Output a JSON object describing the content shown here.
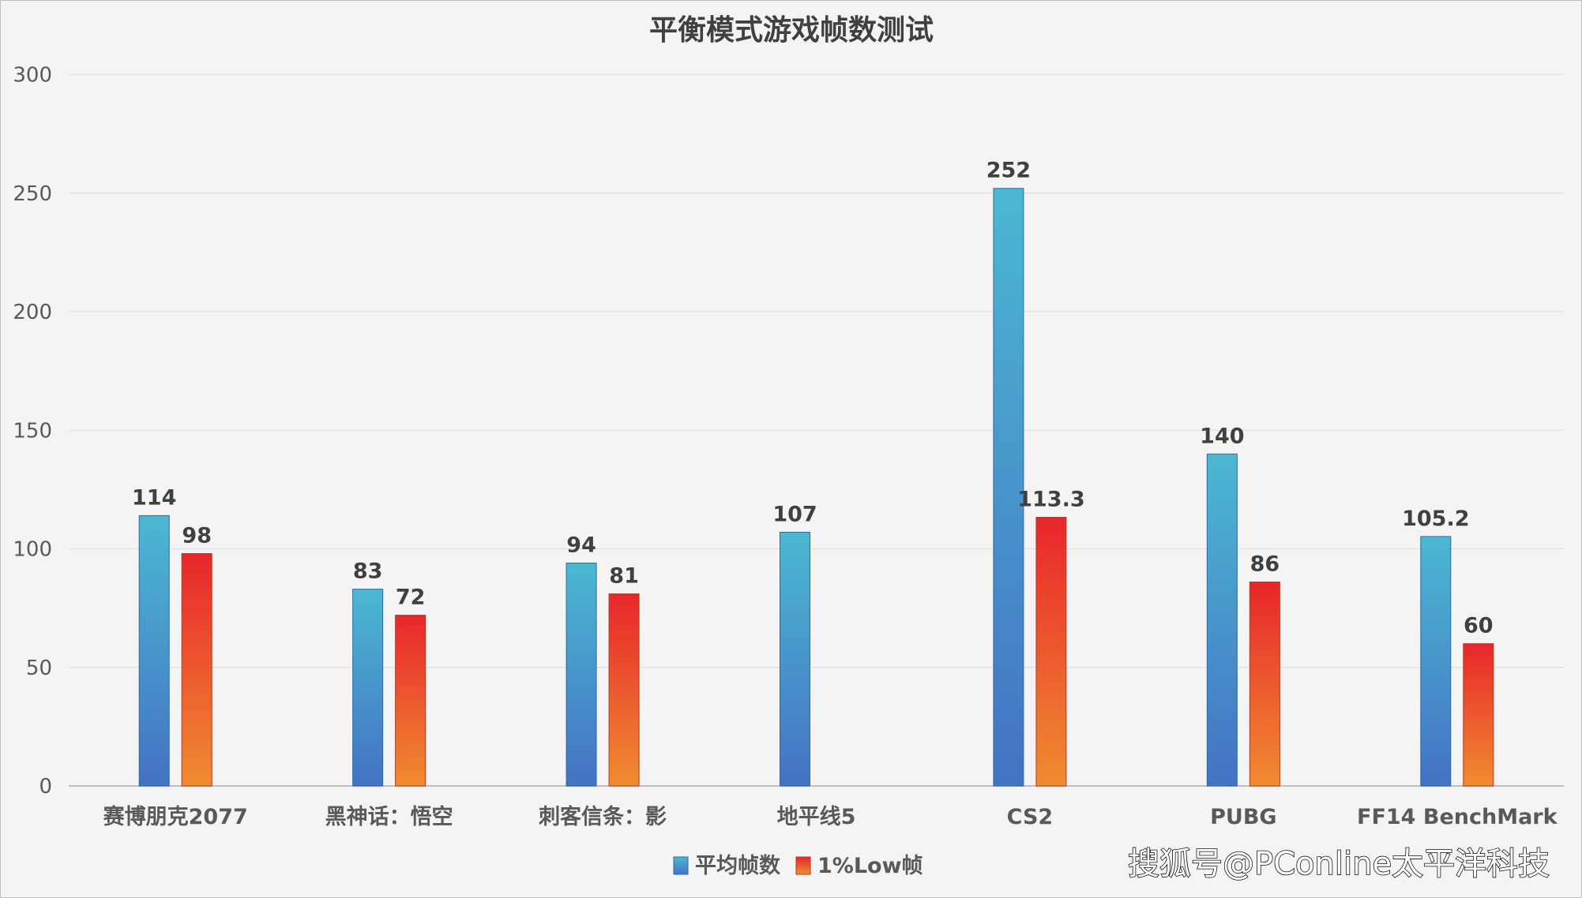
{
  "chart_data": {
    "type": "bar",
    "title": "平衡模式游戏帧数测试",
    "categories": [
      "赛博朋克2077",
      "黑神话：悟空",
      "刺客信条：影",
      "地平线5",
      "CS2",
      "PUBG",
      "FF14 BenchMark"
    ],
    "series": [
      {
        "name": "平均帧数",
        "values": [
          114,
          83,
          94,
          107,
          252,
          140,
          105.2
        ],
        "color_top": "#4bb8d2",
        "color_bottom": "#4472c4"
      },
      {
        "name": "1%Low帧",
        "values": [
          98,
          72,
          81,
          null,
          113.3,
          86,
          60
        ],
        "color_top": "#e8262c",
        "color_bottom": "#f08c30"
      }
    ],
    "ylim": [
      0,
      300
    ],
    "yticks": [
      0,
      50,
      100,
      150,
      200,
      250,
      300
    ],
    "xlabel": "",
    "ylabel": "",
    "grid": true,
    "legend_position": "bottom"
  },
  "watermark": "搜狐号@PConline太平洋科技"
}
